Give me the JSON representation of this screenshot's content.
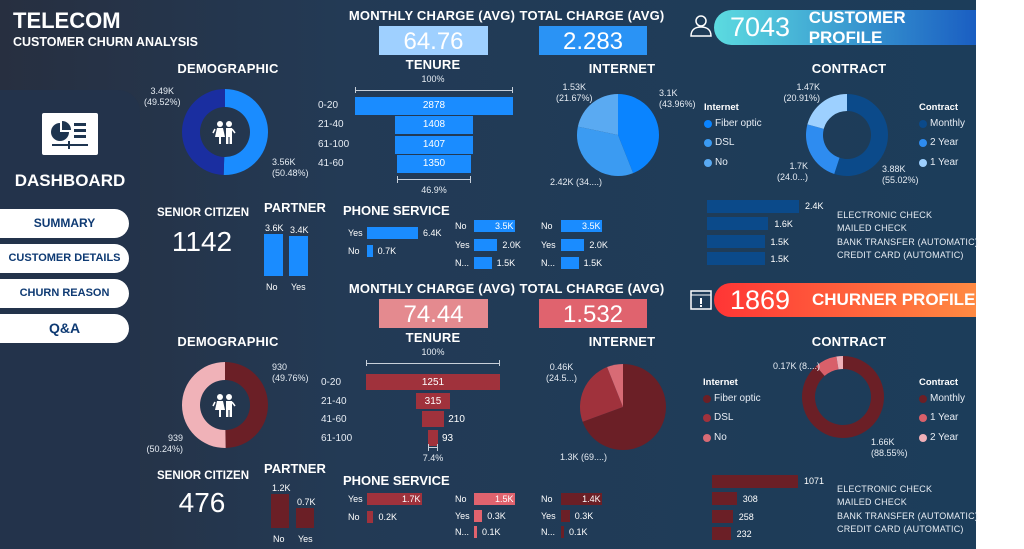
{
  "title": "TELECOM",
  "subtitle": "CUSTOMER CHURN ANALYSIS",
  "sidebar": {
    "heading": "DASHBOARD",
    "items": [
      {
        "label": "SUMMARY"
      },
      {
        "label": "CUSTOMER DETAILS"
      },
      {
        "label": "CHURN REASON"
      },
      {
        "label": "Q&A"
      }
    ]
  },
  "labels": {
    "monthly": "MONTHLY CHARGE (AVG)",
    "total": "TOTAL CHARGE (AVG)",
    "demographic": "DEMOGRAPHIC",
    "tenure": "TENURE",
    "internet": "INTERNET",
    "contract": "CONTRACT",
    "senior": "SENIOR CITIZEN",
    "partner": "PARTNER",
    "phone": "PHONE SERVICE",
    "internet_legend": "Internet",
    "contract_legend": "Contract"
  },
  "payment_methods": [
    "ELECTRONIC CHECK",
    "MAILED CHECK",
    "BANK TRANSFER (AUTOMATIC)",
    "CREDIT CARD (AUTOMATIC)"
  ],
  "customer": {
    "count": "7043",
    "profile_label": "CUSTOMER PROFILE",
    "monthly_avg": "64.76",
    "total_avg": "2.283",
    "senior": "1142",
    "colors": {
      "monthly_box": "#9fd0ff",
      "total_box": "#2a93f5",
      "bar": "#1a8cff",
      "pill_from": "#5cdbe0",
      "pill_to": "#1a5ec2"
    },
    "demographic": [
      {
        "value": 3490,
        "label": "3.49K",
        "pct": "(49.52%)",
        "color": "#1a2ea0"
      },
      {
        "value": 3560,
        "label": "3.56K",
        "pct": "(50.48%)",
        "color": "#1a8cff"
      }
    ],
    "tenure": {
      "top": "100%",
      "bottom": "46.9%",
      "rows": [
        {
          "cat": "0-20",
          "value": 2878
        },
        {
          "cat": "21-40",
          "value": 1408
        },
        {
          "cat": "61-100",
          "value": 1407
        },
        {
          "cat": "41-60",
          "value": 1350
        }
      ]
    },
    "internet": [
      {
        "name": "Fiber optic",
        "value": 3100,
        "label": "3.1K",
        "pct": "(43.96%)",
        "color": "#0a84ff"
      },
      {
        "name": "DSL",
        "value": 2420,
        "label": "2.42K (34....)",
        "pct": "",
        "color": "#3b9bf2"
      },
      {
        "name": "No",
        "value": 1530,
        "label": "1.53K",
        "pct": "(21.67%)",
        "color": "#5aaaf2"
      }
    ],
    "contract": [
      {
        "name": "Monthly",
        "value": 3880,
        "label": "3.88K",
        "pct": "(55.02%)",
        "color": "#0b4a8a"
      },
      {
        "name": "2 Year",
        "value": 1700,
        "label": "1.7K",
        "pct": "(24.0...)",
        "color": "#2e8cf0"
      },
      {
        "name": "1 Year",
        "value": 1470,
        "label": "1.47K",
        "pct": "(20.91%)",
        "color": "#9dd0ff"
      }
    ],
    "partner": [
      {
        "cat": "No",
        "value": 3.6,
        "label": "3.6K"
      },
      {
        "cat": "Yes",
        "value": 3.4,
        "label": "3.4K"
      }
    ],
    "phone": [
      {
        "cat": "Yes",
        "value": 6.4,
        "label": "6.4K"
      },
      {
        "cat": "No",
        "value": 0.7,
        "label": "0.7K"
      }
    ],
    "multiple_lines": [
      {
        "cat": "No",
        "value": 3.5,
        "label": "3.5K"
      },
      {
        "cat": "Yes",
        "value": 2.0,
        "label": "2.0K"
      },
      {
        "cat": "N...",
        "value": 1.5,
        "label": "1.5K"
      }
    ],
    "service2": [
      {
        "cat": "No",
        "value": 3.5,
        "label": "3.5K"
      },
      {
        "cat": "Yes",
        "value": 2.0,
        "label": "2.0K"
      },
      {
        "cat": "N...",
        "value": 1.5,
        "label": "1.5K"
      }
    ],
    "payment": [
      {
        "value": 2.4,
        "label": "2.4K"
      },
      {
        "value": 1.6,
        "label": "1.6K"
      },
      {
        "value": 1.5,
        "label": "1.5K"
      },
      {
        "value": 1.5,
        "label": "1.5K"
      }
    ]
  },
  "churner": {
    "count": "1869",
    "profile_label": "CHURNER PROFILE",
    "monthly_avg": "74.44",
    "total_avg": "1.532",
    "senior": "476",
    "colors": {
      "monthly_box": "#e48a8f",
      "total_box": "#e0636e",
      "bar": "#a0323c",
      "pill_from": "#ff3535",
      "pill_to": "#ff8a42"
    },
    "demographic": [
      {
        "value": 939,
        "label": "939",
        "pct": "(50.24%)",
        "color": "#f0b2b8"
      },
      {
        "value": 930,
        "label": "930",
        "pct": "(49.76%)",
        "color": "#6b1f26"
      }
    ],
    "tenure": {
      "top": "100%",
      "bottom": "7.4%",
      "rows": [
        {
          "cat": "0-20",
          "value": 1251
        },
        {
          "cat": "21-40",
          "value": 315
        },
        {
          "cat": "41-60",
          "value": 210
        },
        {
          "cat": "61-100",
          "value": 93
        }
      ]
    },
    "internet": [
      {
        "name": "Fiber optic",
        "value": 1300,
        "label": "1.3K (69....)",
        "pct": "",
        "color": "#6b1f26"
      },
      {
        "name": "DSL",
        "value": 460,
        "label": "0.46K",
        "pct": "(24.5...)",
        "color": "#a0323c"
      },
      {
        "name": "No",
        "value": 113,
        "label": "",
        "pct": "",
        "color": "#d86b75"
      }
    ],
    "contract": [
      {
        "name": "Monthly",
        "value": 1660,
        "label": "1.66K",
        "pct": "(88.55%)",
        "color": "#6b1f26"
      },
      {
        "name": "1 Year",
        "value": 166,
        "label": "0.17K (8....)",
        "pct": "",
        "color": "#d8606a"
      },
      {
        "name": "2 Year",
        "value": 48,
        "label": "",
        "pct": "",
        "color": "#f0b0b8"
      }
    ],
    "partner": [
      {
        "cat": "No",
        "value": 1.2,
        "label": "1.2K"
      },
      {
        "cat": "Yes",
        "value": 0.7,
        "label": "0.7K"
      }
    ],
    "phone": [
      {
        "cat": "Yes",
        "value": 1.7,
        "label": "1.7K"
      },
      {
        "cat": "No",
        "value": 0.2,
        "label": "0.2K"
      }
    ],
    "multiple_lines": [
      {
        "cat": "No",
        "value": 1.5,
        "label": "1.5K"
      },
      {
        "cat": "Yes",
        "value": 0.3,
        "label": "0.3K"
      },
      {
        "cat": "N...",
        "value": 0.1,
        "label": "0.1K"
      }
    ],
    "service2": [
      {
        "cat": "No",
        "value": 1.4,
        "label": "1.4K"
      },
      {
        "cat": "Yes",
        "value": 0.3,
        "label": "0.3K"
      },
      {
        "cat": "N...",
        "value": 0.1,
        "label": "0.1K"
      }
    ],
    "payment": [
      {
        "value": 1071,
        "label": "1071"
      },
      {
        "value": 308,
        "label": "308"
      },
      {
        "value": 258,
        "label": "258"
      },
      {
        "value": 232,
        "label": "232"
      }
    ]
  }
}
